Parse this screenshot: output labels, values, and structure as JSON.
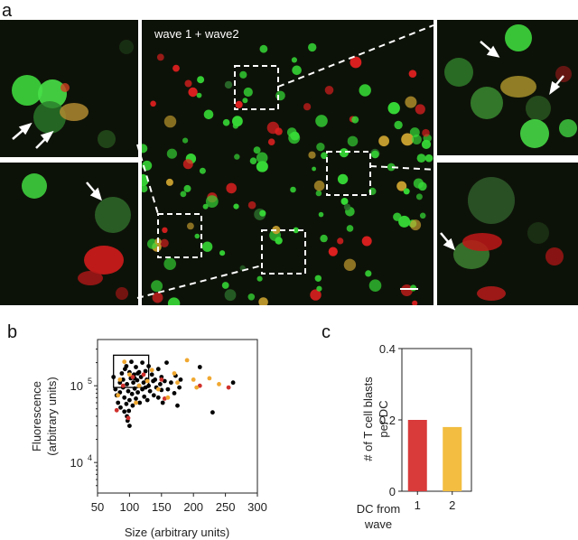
{
  "panels": {
    "a": {
      "letter": "a",
      "center_label": "wave 1 + wave2"
    },
    "b": {
      "letter": "b"
    },
    "c": {
      "letter": "c"
    }
  },
  "colors": {
    "black_points": "#000000",
    "wave1": "#d0312d",
    "wave2": "#f0a830",
    "bar_wave1": "#d93a3a",
    "bar_wave2": "#f2bd40",
    "green_cells": "#36d836",
    "red_cells": "#e02020"
  },
  "chart_data": [
    {
      "type": "scatter",
      "xlabel": "Size (arbitrary units)",
      "ylabel_line1": "Fluorescence",
      "ylabel_line2": "(arbitrary units)",
      "xlim": [
        50,
        300
      ],
      "ylim_log": [
        4000,
        400000
      ],
      "log_y": true,
      "x_ticks": [
        "50",
        "100",
        "150",
        "200",
        "250",
        "300"
      ],
      "y_ticks": [
        {
          "value": 10000,
          "base": "10",
          "exp": "4"
        },
        {
          "value": 100000,
          "base": "10",
          "exp": "5"
        }
      ],
      "gate_box": {
        "x_range": [
          75,
          130
        ],
        "y_range": [
          95000,
          250000
        ]
      },
      "series": [
        {
          "color_key": "black_points",
          "points": [
            [
              75,
              130000
            ],
            [
              78,
              90000
            ],
            [
              80,
              75000
            ],
            [
              82,
              60000
            ],
            [
              85,
              110000
            ],
            [
              86,
              52000
            ],
            [
              88,
              145000
            ],
            [
              90,
              120000
            ],
            [
              90,
              95000
            ],
            [
              92,
              70000
            ],
            [
              93,
              165000
            ],
            [
              95,
              58000
            ],
            [
              95,
              180000
            ],
            [
              96,
              105000
            ],
            [
              98,
              85000
            ],
            [
              99,
              47000
            ],
            [
              100,
              150000
            ],
            [
              100,
              65000
            ],
            [
              102,
              125000
            ],
            [
              103,
              205000
            ],
            [
              104,
              78000
            ],
            [
              105,
              55000
            ],
            [
              106,
              110000
            ],
            [
              107,
              140000
            ],
            [
              108,
              92000
            ],
            [
              110,
              68000
            ],
            [
              110,
              175000
            ],
            [
              112,
              118000
            ],
            [
              113,
              82000
            ],
            [
              115,
              150000
            ],
            [
              115,
              100000
            ],
            [
              116,
              60000
            ],
            [
              118,
              130000
            ],
            [
              120,
              90000
            ],
            [
              120,
              200000
            ],
            [
              122,
              110000
            ],
            [
              123,
              72000
            ],
            [
              125,
              155000
            ],
            [
              125,
              95000
            ],
            [
              127,
              120000
            ],
            [
              128,
              65000
            ],
            [
              130,
              180000
            ],
            [
              130,
              100000
            ],
            [
              132,
              85000
            ],
            [
              135,
              140000
            ],
            [
              137,
              115000
            ],
            [
              138,
              75000
            ],
            [
              140,
              120000
            ],
            [
              142,
              95000
            ],
            [
              145,
              165000
            ],
            [
              145,
              70000
            ],
            [
              148,
              105000
            ],
            [
              150,
              130000
            ],
            [
              150,
              88000
            ],
            [
              152,
              60000
            ],
            [
              155,
              115000
            ],
            [
              158,
              200000
            ],
            [
              160,
              90000
            ],
            [
              165,
              110000
            ],
            [
              170,
              80000
            ],
            [
              172,
              135000
            ],
            [
              175,
              55000
            ],
            [
              178,
              95000
            ],
            [
              180,
              120000
            ],
            [
              210,
              175000
            ],
            [
              230,
              45000
            ],
            [
              262,
              110000
            ],
            [
              85,
              82000
            ],
            [
              92,
              46000
            ],
            [
              97,
              35000
            ],
            [
              100,
              30000
            ],
            [
              96,
              40000
            ],
            [
              108,
              125000
            ],
            [
              113,
              145000
            ]
          ]
        },
        {
          "color_key": "wave1",
          "points": [
            [
              80,
              48000
            ],
            [
              90,
              100000
            ],
            [
              98,
              38000
            ],
            [
              105,
              130000
            ],
            [
              122,
              140000
            ],
            [
              150,
              120000
            ],
            [
              155,
              68000
            ],
            [
              210,
              100000
            ],
            [
              255,
              95000
            ]
          ]
        },
        {
          "color_key": "wave2",
          "points": [
            [
              85,
              120000
            ],
            [
              92,
              205000
            ],
            [
              100,
              140000
            ],
            [
              115,
              100000
            ],
            [
              128,
              115000
            ],
            [
              135,
              160000
            ],
            [
              145,
              90000
            ],
            [
              160,
              70000
            ],
            [
              170,
              145000
            ],
            [
              175,
              110000
            ],
            [
              190,
              215000
            ],
            [
              200,
              120000
            ],
            [
              205,
              95000
            ],
            [
              225,
              125000
            ],
            [
              240,
              105000
            ],
            [
              82,
              75000
            ],
            [
              110,
              60000
            ]
          ]
        }
      ]
    },
    {
      "type": "bar",
      "ylabel_line1": "# of T cell blasts",
      "ylabel_line2": "per DC",
      "ylim": [
        0,
        0.4
      ],
      "y_ticks": [
        "0",
        "0.2",
        "0.4"
      ],
      "xlabel_line1": "DC from",
      "xlabel_line2": "wave",
      "categories": [
        "1",
        "2"
      ],
      "values": [
        0.2,
        0.18
      ],
      "color_keys": [
        "bar_wave1",
        "bar_wave2"
      ]
    }
  ]
}
